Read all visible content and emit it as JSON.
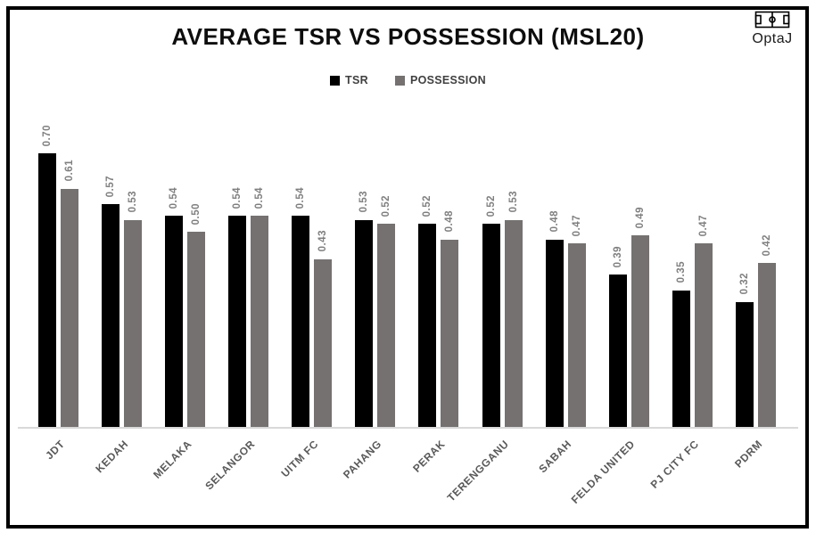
{
  "title": "AVERAGE TSR VS POSSESSION (MSL20)",
  "brand": {
    "name": "OptaJ",
    "icon": "football-pitch-icon"
  },
  "legend": {
    "items": [
      {
        "label": "TSR",
        "color": "#000000"
      },
      {
        "label": "POSSESSION",
        "color": "#757171"
      }
    ]
  },
  "chart_data": {
    "type": "bar",
    "title": "AVERAGE TSR VS POSSESSION (MSL20)",
    "categories": [
      "JDT",
      "KEDAH",
      "MELAKA",
      "SELANGOR",
      "UITM FC",
      "PAHANG",
      "PERAK",
      "TERENGGANU",
      "SABAH",
      "FELDA UNITED",
      "PJ CITY FC",
      "PDRM"
    ],
    "series": [
      {
        "name": "TSR",
        "color": "#000000",
        "values": [
          0.7,
          0.57,
          0.54,
          0.54,
          0.54,
          0.53,
          0.52,
          0.52,
          0.48,
          0.39,
          0.35,
          0.32
        ]
      },
      {
        "name": "POSSESSION",
        "color": "#757171",
        "values": [
          0.61,
          0.53,
          0.5,
          0.54,
          0.43,
          0.52,
          0.48,
          0.53,
          0.47,
          0.49,
          0.47,
          0.42
        ]
      }
    ],
    "ylim": [
      0,
      0.75
    ],
    "grid": false,
    "y_axis_visible": false,
    "legend_position": "top",
    "data_labels": true,
    "label_format": "0.00",
    "value_label_color": "#7f7f7f",
    "category_label_color": "#595959",
    "axis_line_color": "#d9d9d9",
    "frame_border_color": "#000000"
  }
}
